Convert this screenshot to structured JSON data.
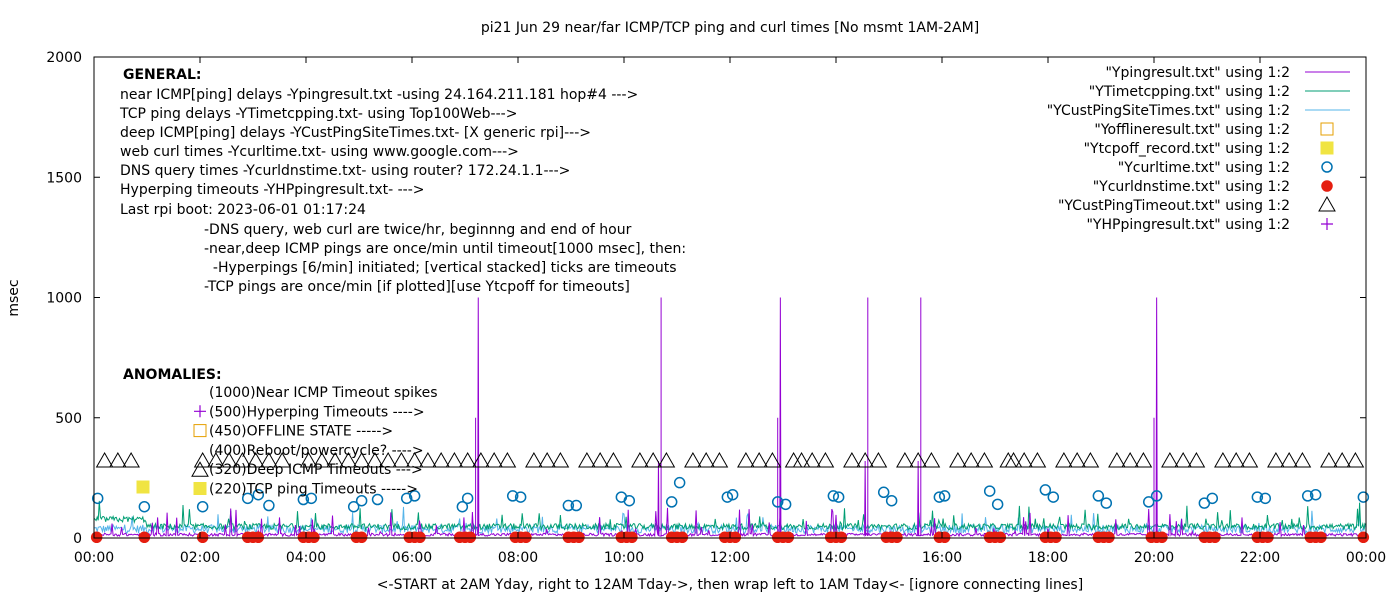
{
  "chart_data": {
    "type": "line",
    "title": "pi21 Jun 29  near/far ICMP/TCP ping and curl times [No msmt 1AM-2AM]",
    "xlabel": "<-START at 2AM Yday, right to 12AM Tday->, then wrap left to 1AM Tday<- [ignore connecting lines]",
    "ylabel": "msec",
    "xlim": [
      0,
      24
    ],
    "ylim": [
      0,
      2000
    ],
    "x_ticks": [
      "00:00",
      "02:00",
      "04:00",
      "06:00",
      "08:00",
      "10:00",
      "12:00",
      "14:00",
      "16:00",
      "18:00",
      "20:00",
      "22:00",
      "00:00"
    ],
    "y_ticks": [
      "0",
      "500",
      "1000",
      "1500",
      "2000"
    ],
    "legend": [
      {
        "label": "\"Ypingresult.txt\" using 1:2",
        "marker": "line",
        "color": "#9400d3"
      },
      {
        "label": "\"YTimetcpping.txt\" using 1:2",
        "marker": "line",
        "color": "#009e73"
      },
      {
        "label": "\"YCustPingSiteTimes.txt\" using 1:2",
        "marker": "line",
        "color": "#56b4e9"
      },
      {
        "label": "\"Yofflineresult.txt\" using 1:2",
        "marker": "open-square",
        "color": "#e69f00"
      },
      {
        "label": "\"Ytcpoff_record.txt\" using 1:2",
        "marker": "filled-square",
        "color": "#f0e442"
      },
      {
        "label": "\"Ycurltime.txt\" using 1:2",
        "marker": "open-circle",
        "color": "#0072b2"
      },
      {
        "label": "\"Ycurldnstime.txt\" using 1:2",
        "marker": "filled-circle",
        "color": "#e51e10"
      },
      {
        "label": "\"YCustPingTimeout.txt\" using 1:2",
        "marker": "open-triangle",
        "color": "#000000"
      },
      {
        "label": "\"YHPpingresult.txt\" using 1:2",
        "marker": "plus",
        "color": "#9400d3"
      }
    ],
    "general_notes": [
      "GENERAL:",
      "near ICMP[ping] delays -Ypingresult.txt -using 24.164.211.181 hop#4 --->",
      "TCP ping delays -YTimetcpping.txt- using Top100Web--->",
      "deep ICMP[ping] delays -YCustPingSiteTimes.txt- [X generic rpi]--->",
      "web curl times -Ycurltime.txt- using www.google.com--->",
      "DNS query times -Ycurldnstime.txt- using router? 172.24.1.1--->",
      "Hyperping timeouts -YHPpingresult.txt- --->",
      "Last rpi boot: 2023-06-01 01:17:24",
      "-DNS query, web curl are twice/hr, beginnng and end of hour",
      "-near,deep ICMP pings are once/min until timeout[1000 msec], then:",
      "  -Hyperpings [6/min] initiated; [vertical stacked] ticks are timeouts",
      "-TCP pings are once/min [if plotted][use Ytcpoff for timeouts]"
    ],
    "anomalies_title": "ANOMALIES:",
    "anomalies": [
      {
        "label": "(1000)Near ICMP Timeout spikes",
        "marker": "none"
      },
      {
        "label": "(500)Hyperping Timeouts ---->",
        "marker": "plus"
      },
      {
        "label": "(450)OFFLINE STATE ----->",
        "marker": "open-square"
      },
      {
        "label": "(400)Reboot/powercycle? ---->",
        "marker": "none"
      },
      {
        "label": "(320)Deep ICMP Timeouts --->",
        "marker": "open-triangle"
      },
      {
        "label": "(220)TCP ping Timeouts ----->",
        "marker": "filled-square"
      }
    ],
    "series": {
      "near_icmp_timeout_spikes_x": [
        7.25,
        10.7,
        12.95,
        14.6,
        15.6,
        20.05
      ],
      "near_icmp_timeout_spikes_y": 1000,
      "medium_spikes": [
        {
          "x": 7.2,
          "y": 500
        },
        {
          "x": 10.65,
          "y": 320
        },
        {
          "x": 12.9,
          "y": 500
        },
        {
          "x": 14.55,
          "y": 320
        },
        {
          "x": 15.55,
          "y": 320
        },
        {
          "x": 20.0,
          "y": 500
        }
      ],
      "deep_icmp_timeouts": {
        "y": 320,
        "x": [
          0.2,
          0.45,
          0.7,
          2.05,
          2.3,
          2.55,
          2.8,
          3.05,
          3.3,
          3.55,
          4.05,
          4.3,
          4.55,
          4.8,
          5.05,
          5.3,
          5.55,
          5.8,
          6.05,
          6.3,
          6.55,
          6.8,
          7.05,
          7.3,
          7.55,
          7.8,
          8.3,
          8.55,
          8.8,
          9.3,
          9.55,
          9.8,
          10.3,
          10.55,
          10.8,
          11.3,
          11.55,
          11.8,
          12.3,
          12.55,
          12.8,
          13.2,
          13.35,
          13.55,
          13.8,
          14.3,
          14.55,
          14.8,
          15.3,
          15.55,
          15.8,
          16.3,
          16.55,
          16.8,
          17.25,
          17.35,
          17.55,
          17.8,
          18.3,
          18.55,
          18.8,
          19.3,
          19.55,
          19.8,
          20.3,
          20.55,
          20.8,
          21.3,
          21.55,
          21.8,
          22.3,
          22.55,
          22.8,
          23.3,
          23.55,
          23.8
        ]
      },
      "curl_times": [
        {
          "x": 0.07,
          "y": 165
        },
        {
          "x": 0.95,
          "y": 130
        },
        {
          "x": 2.05,
          "y": 130
        },
        {
          "x": 2.9,
          "y": 165
        },
        {
          "x": 3.1,
          "y": 180
        },
        {
          "x": 3.3,
          "y": 135
        },
        {
          "x": 3.95,
          "y": 160
        },
        {
          "x": 4.1,
          "y": 165
        },
        {
          "x": 4.9,
          "y": 130
        },
        {
          "x": 5.05,
          "y": 155
        },
        {
          "x": 5.35,
          "y": 160
        },
        {
          "x": 5.9,
          "y": 165
        },
        {
          "x": 6.05,
          "y": 175
        },
        {
          "x": 6.95,
          "y": 130
        },
        {
          "x": 7.05,
          "y": 165
        },
        {
          "x": 7.9,
          "y": 175
        },
        {
          "x": 8.05,
          "y": 170
        },
        {
          "x": 8.95,
          "y": 135
        },
        {
          "x": 9.1,
          "y": 135
        },
        {
          "x": 9.95,
          "y": 170
        },
        {
          "x": 10.1,
          "y": 155
        },
        {
          "x": 10.9,
          "y": 150
        },
        {
          "x": 11.05,
          "y": 230
        },
        {
          "x": 11.95,
          "y": 170
        },
        {
          "x": 12.05,
          "y": 180
        },
        {
          "x": 12.9,
          "y": 150
        },
        {
          "x": 13.05,
          "y": 140
        },
        {
          "x": 13.95,
          "y": 175
        },
        {
          "x": 14.05,
          "y": 170
        },
        {
          "x": 14.9,
          "y": 190
        },
        {
          "x": 15.05,
          "y": 155
        },
        {
          "x": 15.95,
          "y": 170
        },
        {
          "x": 16.05,
          "y": 175
        },
        {
          "x": 16.9,
          "y": 195
        },
        {
          "x": 17.05,
          "y": 140
        },
        {
          "x": 17.95,
          "y": 200
        },
        {
          "x": 18.1,
          "y": 170
        },
        {
          "x": 18.95,
          "y": 175
        },
        {
          "x": 19.1,
          "y": 145
        },
        {
          "x": 19.9,
          "y": 150
        },
        {
          "x": 20.05,
          "y": 175
        },
        {
          "x": 20.95,
          "y": 145
        },
        {
          "x": 21.1,
          "y": 165
        },
        {
          "x": 21.95,
          "y": 170
        },
        {
          "x": 22.1,
          "y": 165
        },
        {
          "x": 22.9,
          "y": 175
        },
        {
          "x": 23.05,
          "y": 180
        },
        {
          "x": 23.95,
          "y": 170
        }
      ],
      "dns_times_y": 3,
      "dns_times_x": [
        0.05,
        0.95,
        2.05,
        2.9,
        3.0,
        3.1,
        3.95,
        4.05,
        4.15,
        4.95,
        5.05,
        5.95,
        6.05,
        6.15,
        6.9,
        7.0,
        7.1,
        7.95,
        8.05,
        8.15,
        8.95,
        9.05,
        9.15,
        9.95,
        10.05,
        10.15,
        10.9,
        11.0,
        11.1,
        11.9,
        12.0,
        12.1,
        12.9,
        13.0,
        13.1,
        13.9,
        14.0,
        14.1,
        14.95,
        15.05,
        15.15,
        15.95,
        16.05,
        16.9,
        17.0,
        17.1,
        17.95,
        18.05,
        18.15,
        18.95,
        19.05,
        19.15,
        19.95,
        20.05,
        20.15,
        20.95,
        21.05,
        21.15,
        21.95,
        22.05,
        22.15,
        22.95,
        23.05,
        23.15,
        23.95
      ]
    }
  }
}
